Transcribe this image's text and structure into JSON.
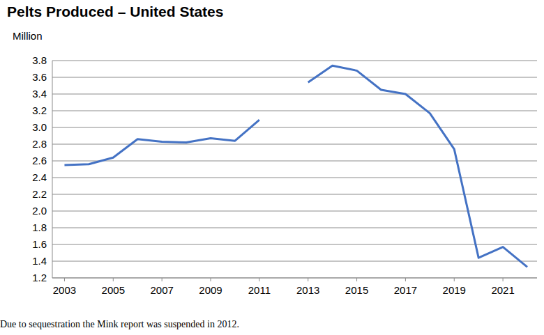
{
  "chart_data": {
    "type": "line",
    "title": "Pelts Produced – United States",
    "y_label": "Million",
    "annotations": [
      "Due to sequestration the Mink report was suspended in 2012."
    ],
    "x": [
      2003,
      2004,
      2005,
      2006,
      2007,
      2008,
      2009,
      2010,
      2011,
      2012,
      2013,
      2014,
      2015,
      2016,
      2017,
      2018,
      2019,
      2020,
      2021,
      2022
    ],
    "series": [
      {
        "name": "Pelts",
        "color": "#4472c4",
        "values": [
          2.55,
          2.56,
          2.64,
          2.86,
          2.83,
          2.82,
          2.87,
          2.84,
          3.09,
          null,
          3.54,
          3.74,
          3.68,
          3.45,
          3.4,
          3.17,
          2.74,
          1.44,
          1.57,
          1.33
        ]
      }
    ],
    "xlim": [
      2002.5,
      2022.4
    ],
    "xticks": [
      2003,
      2005,
      2007,
      2009,
      2011,
      2013,
      2015,
      2017,
      2019,
      2021
    ],
    "ylim": [
      1.2,
      3.8
    ],
    "yticks": [
      1.2,
      1.4,
      1.6,
      1.8,
      {
        "value": 2,
        "label": "2.0"
      },
      2.2,
      2.4,
      2.6,
      2.8,
      {
        "value": 3,
        "label": "3.0"
      },
      3.2,
      3.4,
      3.6,
      3.8
    ],
    "grid": true
  }
}
